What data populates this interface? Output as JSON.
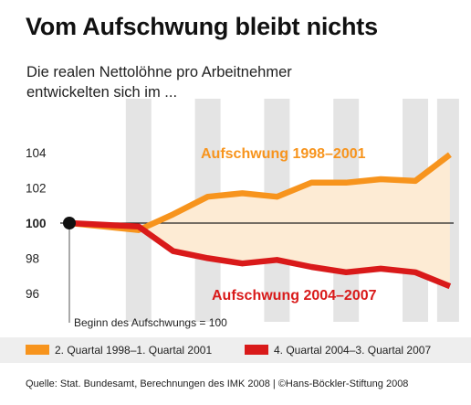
{
  "header": {
    "title": "Vom Aufschwung bleibt nichts",
    "subtitle_line1": "Die realen Nettolöhne pro Arbeitnehmer",
    "subtitle_line2": "entwickelten sich im ..."
  },
  "colors": {
    "orange": "#f7941d",
    "red": "#d91a1a",
    "shade": "#fdebd4",
    "stripe": "#e4e4e4",
    "gridline": "#555555"
  },
  "legend": {
    "orange_label": "2. Quartal 1998–1. Quartal 2001",
    "red_label": "4. Quartal 2004–3. Quartal 2007"
  },
  "footer": {
    "source": "Quelle: Stat. Bundesamt, Berechnungen des IMK 2008 | ©Hans-Böckler-Stiftung 2008"
  },
  "chart_data": {
    "type": "line",
    "baseline_note": "Beginn des Aufschwungs = 100",
    "ylim": [
      95,
      105
    ],
    "yticks": [
      96,
      98,
      100,
      102,
      104
    ],
    "x": [
      0,
      1,
      2,
      3,
      4,
      5,
      6,
      7,
      8,
      9,
      10,
      11
    ],
    "series": [
      {
        "name": "Aufschwung 1998–2001",
        "legend": "2. Quartal 1998–1. Quartal 2001",
        "color": "#f7941d",
        "values": [
          100.0,
          99.8,
          99.6,
          100.5,
          101.5,
          101.7,
          101.5,
          102.3,
          102.3,
          102.5,
          102.4,
          103.9
        ]
      },
      {
        "name": "Aufschwung 2004–2007",
        "legend": "4. Quartal 2004–3. Quartal 2007",
        "color": "#d91a1a",
        "values": [
          100.0,
          99.9,
          99.8,
          98.4,
          98.0,
          97.7,
          97.9,
          97.5,
          97.2,
          97.4,
          97.2,
          96.4
        ]
      }
    ]
  }
}
